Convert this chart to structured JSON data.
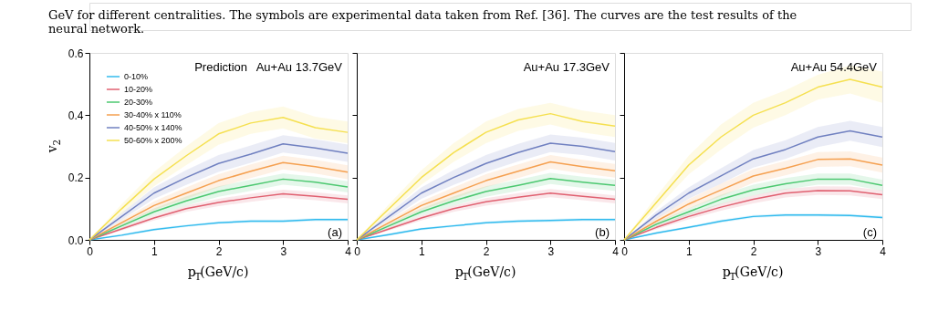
{
  "chart_data": [
    {
      "type": "line",
      "annotations": [
        "GeV for different centralities. The symbols are experimental data taken from Ref. [36]. The curves are the test results of the",
        "neural network.",
        "Prediction",
        "Au+Au 13.7GeV",
        "(a)"
      ],
      "xlabel": "p$_{T}$(GeV/c)",
      "ylabel": "v$_{2}$",
      "x": [
        0,
        0.5,
        1,
        1.5,
        2,
        2.5,
        3,
        3.5,
        4
      ],
      "xlim": [
        0,
        4
      ],
      "xticks": [
        0,
        1,
        2,
        3,
        4
      ],
      "ylim": [
        0,
        0.6
      ],
      "yticks": [
        {
          "value": 0,
          "label": "0.0"
        },
        0.2,
        0.4,
        0.6
      ],
      "grid": false,
      "legend": "top left",
      "marker": "none",
      "line_style": "solid",
      "series": [
        {
          "name": "0-10%",
          "color": "#33bbee",
          "values": [
            0,
            0.015,
            0.033,
            0.045,
            0.055,
            0.06,
            0.06,
            0.065,
            0.065
          ],
          "lower": [
            0,
            0.011,
            0.029,
            0.041,
            0.051,
            0.055,
            0.055,
            0.06,
            0.06
          ],
          "upper": [
            0,
            0.019,
            0.037,
            0.049,
            0.059,
            0.065,
            0.065,
            0.07,
            0.07
          ]
        },
        {
          "name": "10-20%",
          "color": "#e06070",
          "values": [
            0,
            0.035,
            0.07,
            0.1,
            0.12,
            0.135,
            0.148,
            0.14,
            0.13
          ],
          "lower": [
            0,
            0.03,
            0.062,
            0.09,
            0.108,
            0.122,
            0.135,
            0.127,
            0.117
          ],
          "upper": [
            0,
            0.04,
            0.078,
            0.11,
            0.132,
            0.148,
            0.161,
            0.153,
            0.143
          ]
        },
        {
          "name": "20-30%",
          "color": "#4cc870",
          "values": [
            0,
            0.045,
            0.09,
            0.125,
            0.155,
            0.175,
            0.195,
            0.185,
            0.17
          ],
          "lower": [
            0,
            0.038,
            0.079,
            0.11,
            0.138,
            0.157,
            0.177,
            0.167,
            0.152
          ],
          "upper": [
            0,
            0.052,
            0.101,
            0.14,
            0.172,
            0.193,
            0.213,
            0.203,
            0.188
          ]
        },
        {
          "name": "30-40% x 110%",
          "color": "#f5a050",
          "values": [
            0,
            0.055,
            0.11,
            0.15,
            0.19,
            0.22,
            0.248,
            0.235,
            0.217
          ],
          "lower": [
            0,
            0.046,
            0.096,
            0.132,
            0.169,
            0.198,
            0.226,
            0.213,
            0.195
          ],
          "upper": [
            0,
            0.064,
            0.124,
            0.168,
            0.211,
            0.242,
            0.27,
            0.257,
            0.239
          ]
        },
        {
          "name": "40-50% x 140%",
          "color": "#7080c0",
          "values": [
            0,
            0.075,
            0.15,
            0.2,
            0.245,
            0.275,
            0.308,
            0.295,
            0.278
          ],
          "lower": [
            0,
            0.064,
            0.132,
            0.176,
            0.218,
            0.247,
            0.28,
            0.267,
            0.25
          ],
          "upper": [
            0,
            0.086,
            0.168,
            0.224,
            0.272,
            0.303,
            0.336,
            0.323,
            0.306
          ]
        },
        {
          "name": "50-60% x 200%",
          "color": "#f5e050",
          "values": [
            0,
            0.1,
            0.195,
            0.27,
            0.34,
            0.375,
            0.393,
            0.36,
            0.345
          ],
          "lower": [
            0,
            0.085,
            0.172,
            0.24,
            0.305,
            0.34,
            0.358,
            0.325,
            0.31
          ],
          "upper": [
            0,
            0.115,
            0.218,
            0.3,
            0.375,
            0.41,
            0.428,
            0.395,
            0.38
          ]
        }
      ]
    },
    {
      "type": "line",
      "annotations": [
        "Au+Au 17.3GeV",
        "(b)"
      ],
      "xlabel": "p$_{T}$(GeV/c)",
      "x": [
        0,
        0.5,
        1,
        1.5,
        2,
        2.5,
        3,
        3.5,
        4
      ],
      "xlim": [
        0,
        4
      ],
      "xticks": [
        0,
        1,
        2,
        3,
        4
      ],
      "ylim": [
        0,
        0.6
      ],
      "yticks": [
        0,
        0.2,
        0.4,
        0.6
      ],
      "tick_labels": "x",
      "grid": false,
      "marker": "none",
      "line_style": "solid",
      "series": [
        {
          "color": "#33bbee",
          "values": [
            0,
            0.017,
            0.035,
            0.045,
            0.055,
            0.06,
            0.062,
            0.065,
            0.065
          ],
          "lower": [
            0,
            0.013,
            0.031,
            0.041,
            0.051,
            0.055,
            0.057,
            0.06,
            0.06
          ],
          "upper": [
            0,
            0.021,
            0.039,
            0.049,
            0.059,
            0.065,
            0.067,
            0.07,
            0.07
          ]
        },
        {
          "color": "#e06070",
          "values": [
            0,
            0.035,
            0.07,
            0.1,
            0.122,
            0.137,
            0.15,
            0.14,
            0.13
          ],
          "lower": [
            0,
            0.03,
            0.062,
            0.09,
            0.11,
            0.124,
            0.137,
            0.127,
            0.117
          ],
          "upper": [
            0,
            0.04,
            0.078,
            0.11,
            0.134,
            0.15,
            0.163,
            0.153,
            0.143
          ]
        },
        {
          "color": "#4cc870",
          "values": [
            0,
            0.045,
            0.09,
            0.125,
            0.155,
            0.175,
            0.197,
            0.185,
            0.175
          ],
          "lower": [
            0,
            0.038,
            0.079,
            0.11,
            0.138,
            0.157,
            0.179,
            0.167,
            0.157
          ],
          "upper": [
            0,
            0.052,
            0.101,
            0.14,
            0.172,
            0.193,
            0.215,
            0.203,
            0.193
          ]
        },
        {
          "color": "#f5a050",
          "values": [
            0,
            0.055,
            0.11,
            0.15,
            0.19,
            0.22,
            0.25,
            0.235,
            0.222
          ],
          "lower": [
            0,
            0.046,
            0.096,
            0.132,
            0.169,
            0.198,
            0.228,
            0.213,
            0.2
          ],
          "upper": [
            0,
            0.064,
            0.124,
            0.168,
            0.211,
            0.242,
            0.272,
            0.257,
            0.244
          ]
        },
        {
          "color": "#7080c0",
          "values": [
            0,
            0.075,
            0.15,
            0.2,
            0.245,
            0.28,
            0.31,
            0.3,
            0.283
          ],
          "lower": [
            0,
            0.064,
            0.132,
            0.176,
            0.218,
            0.252,
            0.282,
            0.272,
            0.255
          ],
          "upper": [
            0,
            0.086,
            0.168,
            0.224,
            0.272,
            0.308,
            0.338,
            0.328,
            0.311
          ]
        },
        {
          "color": "#f5e050",
          "values": [
            0,
            0.1,
            0.2,
            0.28,
            0.345,
            0.385,
            0.405,
            0.38,
            0.365
          ],
          "lower": [
            0,
            0.085,
            0.177,
            0.25,
            0.31,
            0.35,
            0.37,
            0.345,
            0.33
          ],
          "upper": [
            0,
            0.115,
            0.223,
            0.31,
            0.38,
            0.42,
            0.44,
            0.415,
            0.4
          ]
        }
      ]
    },
    {
      "type": "line",
      "annotations": [
        "Au+Au 54.4GeV",
        "(c)"
      ],
      "xlabel": "p$_{T}$(GeV/c)",
      "x": [
        0,
        0.5,
        1,
        1.5,
        2,
        2.5,
        3,
        3.5,
        4
      ],
      "xlim": [
        0,
        4
      ],
      "xticks": [
        0,
        1,
        2,
        3,
        4
      ],
      "ylim": [
        0,
        0.6
      ],
      "yticks": [
        0,
        0.2,
        0.4,
        0.6
      ],
      "tick_labels": "x",
      "grid": false,
      "marker": "none",
      "line_style": "solid",
      "series": [
        {
          "color": "#33bbee",
          "values": [
            0,
            0.022,
            0.04,
            0.06,
            0.075,
            0.08,
            0.08,
            0.078,
            0.072
          ],
          "lower": [
            0,
            0.018,
            0.036,
            0.055,
            0.07,
            0.075,
            0.075,
            0.073,
            0.067
          ],
          "upper": [
            0,
            0.026,
            0.044,
            0.065,
            0.08,
            0.085,
            0.085,
            0.083,
            0.077
          ]
        },
        {
          "color": "#e06070",
          "values": [
            0,
            0.04,
            0.075,
            0.105,
            0.13,
            0.15,
            0.158,
            0.157,
            0.145
          ],
          "lower": [
            0,
            0.034,
            0.066,
            0.094,
            0.117,
            0.136,
            0.144,
            0.143,
            0.131
          ],
          "upper": [
            0,
            0.046,
            0.084,
            0.116,
            0.143,
            0.164,
            0.172,
            0.171,
            0.159
          ]
        },
        {
          "color": "#4cc870",
          "values": [
            0,
            0.05,
            0.09,
            0.13,
            0.16,
            0.18,
            0.195,
            0.195,
            0.175
          ],
          "lower": [
            0,
            0.043,
            0.079,
            0.115,
            0.143,
            0.162,
            0.177,
            0.177,
            0.157
          ],
          "upper": [
            0,
            0.057,
            0.101,
            0.145,
            0.177,
            0.198,
            0.213,
            0.213,
            0.193
          ]
        },
        {
          "color": "#f5a050",
          "values": [
            0,
            0.06,
            0.115,
            0.16,
            0.205,
            0.23,
            0.258,
            0.26,
            0.24
          ],
          "lower": [
            0,
            0.05,
            0.1,
            0.14,
            0.183,
            0.207,
            0.234,
            0.236,
            0.216
          ],
          "upper": [
            0,
            0.07,
            0.13,
            0.18,
            0.227,
            0.253,
            0.282,
            0.284,
            0.264
          ]
        },
        {
          "color": "#7080c0",
          "values": [
            0,
            0.08,
            0.15,
            0.205,
            0.26,
            0.29,
            0.33,
            0.35,
            0.33
          ],
          "lower": [
            0,
            0.068,
            0.132,
            0.18,
            0.232,
            0.26,
            0.298,
            0.318,
            0.298
          ],
          "upper": [
            0,
            0.092,
            0.168,
            0.23,
            0.288,
            0.32,
            0.362,
            0.382,
            0.362
          ]
        },
        {
          "color": "#f5e050",
          "values": [
            0,
            0.12,
            0.24,
            0.33,
            0.4,
            0.44,
            0.49,
            0.515,
            0.49
          ],
          "lower": [
            0,
            0.1,
            0.21,
            0.29,
            0.36,
            0.4,
            0.45,
            0.47,
            0.44
          ],
          "upper": [
            0,
            0.14,
            0.27,
            0.37,
            0.44,
            0.48,
            0.53,
            0.56,
            0.54
          ]
        }
      ]
    }
  ]
}
